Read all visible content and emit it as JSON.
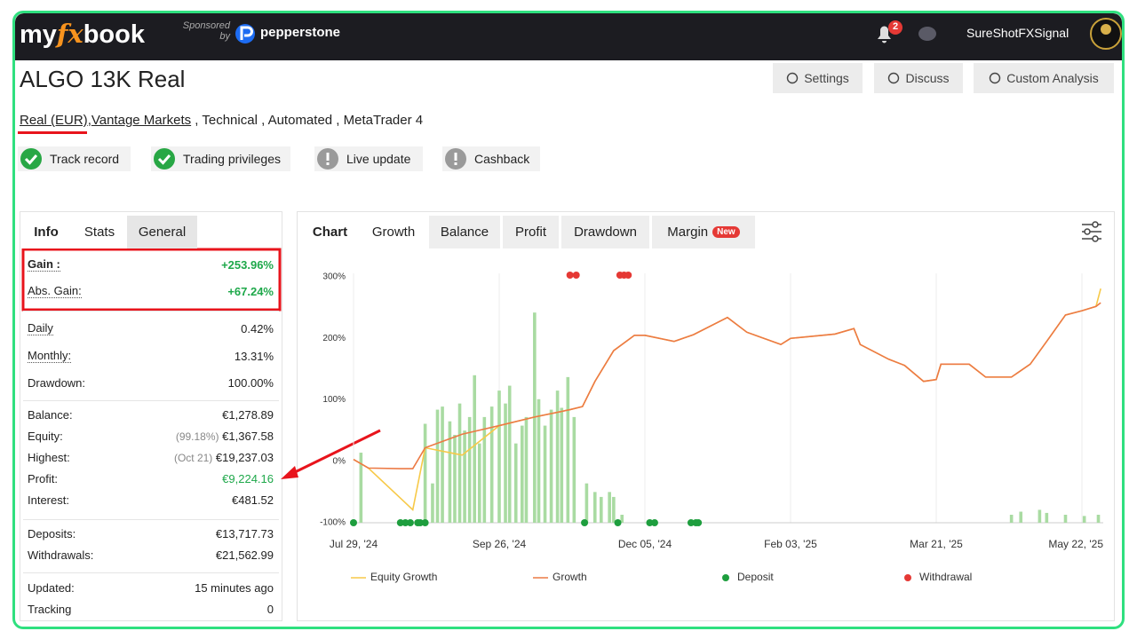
{
  "header": {
    "logo": [
      "my",
      "fx",
      "book"
    ],
    "sponsored": [
      "Sponsored",
      "by"
    ],
    "sponsor": "pepperstone",
    "notifications": "2",
    "user": "SureShotFXSignal"
  },
  "account": {
    "title": "ALGO 13K Real",
    "buttons": [
      "Settings",
      "Discuss",
      "Custom Analysis"
    ],
    "tags": [
      {
        "text": "Real (EUR)",
        "link": true
      },
      {
        "text": ",",
        "link": false
      },
      {
        "text": "Vantage Markets",
        "link": true
      },
      {
        "text": " , Technical , Automated , MetaTrader 4",
        "link": false
      }
    ],
    "badges": [
      {
        "label": "Track record",
        "verified": true
      },
      {
        "label": "Trading privileges",
        "verified": true
      },
      {
        "label": "Live update",
        "verified": false
      },
      {
        "label": "Cashback",
        "verified": false
      }
    ]
  },
  "stats": {
    "tabs": [
      "Info",
      "Stats",
      "General"
    ],
    "groups": [
      [
        {
          "label": "Gain :",
          "value": "+253.96%",
          "color": "#1ea84a",
          "dotted": true,
          "bold": true
        },
        {
          "label": "Abs. Gain:",
          "value": "+67.24%",
          "color": "#1ea84a",
          "dotted": true
        }
      ],
      [
        {
          "label": "Daily",
          "value": "0.42%",
          "dotted": true
        },
        {
          "label": "Monthly:",
          "value": "13.31%",
          "dotted": true
        },
        {
          "label": "Drawdown:",
          "value": "100.00%"
        }
      ],
      [
        {
          "label": "Balance:",
          "value": "€1,278.89"
        },
        {
          "label": "Equity:",
          "note": "(99.18%)",
          "value": "€1,367.58"
        },
        {
          "label": "Highest:",
          "note": "(Oct 21)",
          "value": "€19,237.03"
        },
        {
          "label": "Profit:",
          "value": "€9,224.16",
          "color": "#1ea84a"
        },
        {
          "label": "Interest:",
          "value": "€481.52"
        }
      ],
      [
        {
          "label": "Deposits:",
          "value": "€13,717.73"
        },
        {
          "label": "Withdrawals:",
          "value": "€21,562.99"
        }
      ],
      [
        {
          "label": "Updated:",
          "value": "15 minutes ago"
        },
        {
          "label": "Tracking",
          "value": "0"
        }
      ]
    ]
  },
  "chart_tabs": [
    {
      "label": "Chart"
    },
    {
      "label": "Growth"
    },
    {
      "label": "Balance"
    },
    {
      "label": "Profit"
    },
    {
      "label": "Drawdown"
    },
    {
      "label": "Margin",
      "badge": "New"
    }
  ],
  "chart_data": {
    "type": "line",
    "x": [
      "2024-07-29",
      "2024-08-04",
      "2024-08-17",
      "2024-08-22",
      "2024-08-27",
      "2024-09-11",
      "2024-09-26",
      "2024-10-13",
      "2024-10-30",
      "2024-11-05",
      "2024-11-11",
      "2024-11-20",
      "2024-11-30",
      "2024-12-05",
      "2024-12-17",
      "2024-12-25",
      "2025-01-08",
      "2025-01-16",
      "2025-01-30",
      "2025-02-03",
      "2025-02-17",
      "2025-02-23",
      "2025-02-25",
      "2025-03-06",
      "2025-03-11",
      "2025-03-17",
      "2025-03-21",
      "2025-03-23",
      "2025-04-04",
      "2025-04-11",
      "2025-04-22",
      "2025-04-30",
      "2025-05-07",
      "2025-05-15",
      "2025-05-22",
      "2025-05-28",
      "2025-05-30"
    ],
    "series": [
      {
        "name": "Equity Growth",
        "type": "line",
        "color": "#f7c948",
        "values": [
          3,
          -11,
          -60,
          -79,
          22,
          10,
          58,
          72,
          84,
          89,
          130,
          180,
          205,
          205,
          195,
          206,
          234,
          210,
          190,
          200,
          207,
          216,
          190,
          166,
          156,
          130,
          133,
          158,
          158,
          137,
          137,
          158,
          195,
          238,
          245,
          252,
          281
        ]
      },
      {
        "name": "Growth",
        "type": "line",
        "color": "#ec7a45",
        "values": [
          3,
          -11,
          -12,
          -12,
          22,
          44,
          58,
          72,
          84,
          89,
          130,
          180,
          205,
          205,
          195,
          206,
          234,
          210,
          190,
          200,
          207,
          216,
          190,
          166,
          156,
          130,
          133,
          158,
          158,
          137,
          137,
          158,
          195,
          238,
          245,
          252,
          258
        ]
      },
      {
        "name": "Deposit",
        "type": "marker",
        "position": "bottom",
        "color": "#1e9e3e",
        "x": [
          "2024-07-29",
          "2024-08-17",
          "2024-08-19",
          "2024-08-21",
          "2024-08-24",
          "2024-08-25",
          "2024-08-27",
          "2024-11-06",
          "2024-11-22",
          "2024-12-07",
          "2024-12-09",
          "2024-12-24",
          "2024-12-26",
          "2024-12-27"
        ]
      },
      {
        "name": "Withdrawal",
        "type": "marker",
        "position": "top",
        "color": "#e53935",
        "x": [
          "2024-10-30",
          "2024-11-02",
          "2024-11-23",
          "2024-11-25",
          "2024-11-27"
        ]
      }
    ],
    "bars": {
      "color": "#a9dba2",
      "x": [
        "2024-08-01",
        "2024-08-27",
        "2024-08-30",
        "2024-09-01",
        "2024-09-03",
        "2024-09-06",
        "2024-09-08",
        "2024-09-10",
        "2024-09-12",
        "2024-09-14",
        "2024-09-16",
        "2024-09-18",
        "2024-09-20",
        "2024-09-23",
        "2024-09-26",
        "2024-09-29",
        "2024-10-01",
        "2024-10-04",
        "2024-10-07",
        "2024-10-09",
        "2024-10-13",
        "2024-10-15",
        "2024-10-18",
        "2024-10-21",
        "2024-10-24",
        "2024-10-26",
        "2024-10-29",
        "2024-11-01",
        "2024-11-07",
        "2024-11-11",
        "2024-11-14",
        "2024-11-18",
        "2024-11-20",
        "2024-11-24",
        "2025-04-22",
        "2025-04-26",
        "2025-05-04",
        "2025-05-07",
        "2025-05-15",
        "2025-05-23",
        "2025-05-29"
      ],
      "values": [
        14,
        61,
        -36,
        84,
        89,
        65,
        43,
        94,
        50,
        72,
        140,
        29,
        72,
        89,
        115,
        94,
        123,
        29,
        58,
        72,
        242,
        101,
        58,
        84,
        115,
        87,
        137,
        72,
        -36,
        -50,
        -58,
        -50,
        -58,
        -87,
        -87,
        -82,
        -79,
        -84,
        -87,
        -89,
        -87
      ]
    },
    "ylim": [
      -100,
      300
    ],
    "yticks": [
      {
        "value": -100,
        "label": "-100%"
      },
      {
        "value": 0,
        "label": "0%"
      },
      {
        "value": 100,
        "label": "100%"
      },
      {
        "value": 200,
        "label": "200%"
      },
      {
        "value": 300,
        "label": "300%"
      }
    ],
    "xticks": [
      {
        "value": "2024-07-29",
        "label": "Jul 29, '24"
      },
      {
        "value": "2024-09-26",
        "label": "Sep 26, '24"
      },
      {
        "value": "2024-12-05",
        "label": "Dec 05, '24"
      },
      {
        "value": "2025-02-03",
        "label": "Feb 03, '25"
      },
      {
        "value": "2025-03-21",
        "label": "Mar 21, '25"
      },
      {
        "value": "2025-05-22",
        "label": "May 22, '25"
      }
    ],
    "grid": "x"
  }
}
